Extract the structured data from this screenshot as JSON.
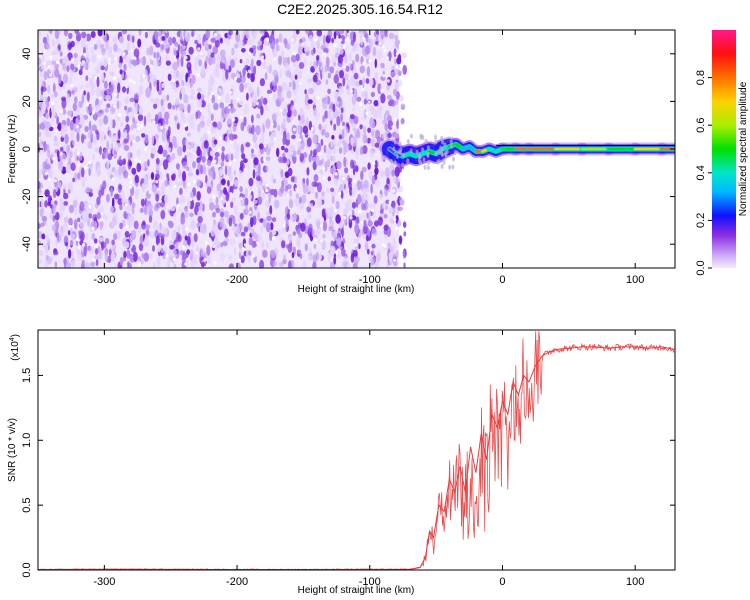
{
  "title": "C2E2.2025.305.16.54.R12",
  "chart_data": [
    {
      "type": "heatmap",
      "name": "spectrogram",
      "xlabel": "Height of straight line (km)",
      "ylabel": "Frequency (Hz)",
      "xlim": [
        -350,
        130
      ],
      "ylim": [
        -50,
        50
      ],
      "xticks": [
        -300,
        -200,
        -100,
        0,
        100
      ],
      "xtick_labels": [
        "-300",
        "-200",
        "-100",
        "0",
        "100"
      ],
      "yticks": [
        -40,
        -20,
        0,
        20,
        40
      ],
      "ytick_labels": [
        "-40",
        "-20",
        "0",
        "20",
        "40"
      ],
      "noise_region": {
        "x_range": [
          -350,
          -78
        ],
        "y_range": [
          -50,
          50
        ],
        "description": "broadband noise"
      },
      "signal_line": {
        "x": [
          -85,
          -80,
          -75,
          -70,
          -65,
          -60,
          -55,
          -50,
          -45,
          -40,
          -35,
          -30,
          -25,
          -20,
          -15,
          -10,
          -5,
          0,
          10,
          20,
          40,
          60,
          80,
          100,
          120,
          130
        ],
        "freq": [
          0,
          -2,
          -3,
          -2,
          -3,
          -2,
          -1,
          -2,
          0,
          1,
          2,
          0,
          1,
          -1,
          -1,
          0,
          -1,
          0,
          0,
          0,
          0,
          0,
          0,
          0,
          0,
          0
        ],
        "amplitude": [
          0.2,
          0.3,
          0.4,
          0.45,
          0.4,
          0.4,
          0.5,
          0.45,
          0.45,
          0.5,
          0.5,
          0.35,
          0.35,
          0.8,
          0.75,
          0.45,
          0.4,
          0.5,
          0.85,
          0.8,
          0.75,
          0.65,
          0.55,
          0.7,
          0.8,
          0.7
        ]
      },
      "colorbar": {
        "label": "Normalized spectral amplitude",
        "range": [
          0,
          1
        ],
        "ticks": [
          0.0,
          0.2,
          0.4,
          0.6,
          0.8
        ],
        "tick_labels": [
          "0.0",
          "0.2",
          "0.4",
          "0.6",
          "0.8"
        ]
      }
    },
    {
      "type": "line",
      "name": "snr",
      "xlabel": "Height of straight line (km)",
      "ylabel": "SNR (10 * v/v)",
      "exponent_label": "(x10",
      "exponent": "4",
      "exponent_close": ")",
      "xlim": [
        -350,
        130
      ],
      "ylim": [
        0,
        1.85
      ],
      "xticks": [
        -300,
        -200,
        -100,
        0,
        100
      ],
      "xtick_labels": [
        "-300",
        "-200",
        "-100",
        "0",
        "100"
      ],
      "yticks": [
        0.0,
        0.5,
        1.0,
        1.5
      ],
      "ytick_labels": [
        "0.0",
        "0.5",
        "1.0",
        "1.5"
      ],
      "color": "#e8383a",
      "series": [
        {
          "name": "SNR",
          "x": [
            -350,
            -300,
            -250,
            -200,
            -150,
            -100,
            -70,
            -62,
            -58,
            -55,
            -52,
            -48,
            -44,
            -40,
            -36,
            -32,
            -28,
            -24,
            -20,
            -16,
            -12,
            -8,
            -4,
            0,
            4,
            8,
            12,
            16,
            20,
            25,
            30,
            35,
            40,
            50,
            60,
            70,
            80,
            90,
            100,
            110,
            120,
            130
          ],
          "y": [
            0.004,
            0.006,
            0.005,
            0.004,
            0.004,
            0.005,
            0.005,
            0.02,
            0.1,
            0.3,
            0.25,
            0.5,
            0.45,
            0.7,
            0.6,
            0.8,
            0.6,
            0.95,
            0.75,
            1.05,
            0.85,
            1.2,
            1.1,
            1.3,
            1.2,
            1.45,
            1.35,
            1.5,
            1.45,
            1.58,
            1.65,
            1.68,
            1.7,
            1.71,
            1.72,
            1.72,
            1.71,
            1.72,
            1.72,
            1.71,
            1.72,
            1.7
          ]
        }
      ]
    }
  ],
  "colors": {
    "noise_light": "#e6d7fb",
    "noise_mid": "#b48cf0",
    "noise_dark": "#7a2be0",
    "signal_line": "#e8383a",
    "axis": "#000000"
  }
}
